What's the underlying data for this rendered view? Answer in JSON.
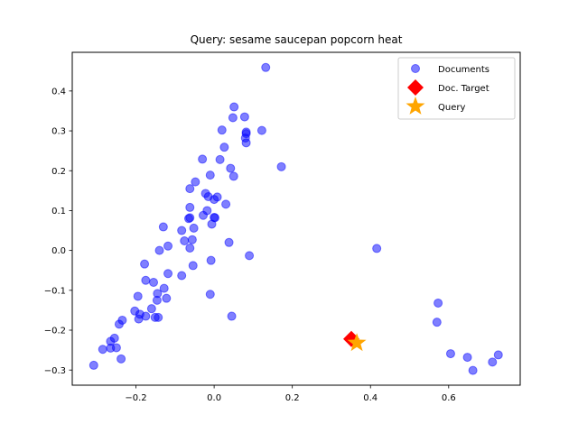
{
  "chart_data": {
    "type": "scatter",
    "title": "Query: sesame saucepan popcorn heat",
    "xlabel": "",
    "ylabel": "",
    "xlim": [
      -0.363,
      0.783
    ],
    "ylim": [
      -0.338,
      0.497
    ],
    "xticks": [
      -0.2,
      0.0,
      0.2,
      0.4,
      0.6
    ],
    "xtick_labels": [
      "−0.2",
      "0.0",
      "0.2",
      "0.4",
      "0.6"
    ],
    "yticks": [
      -0.3,
      -0.2,
      -0.1,
      0.0,
      0.1,
      0.2,
      0.3,
      0.4
    ],
    "ytick_labels": [
      "−0.3",
      "−0.2",
      "−0.1",
      "0.0",
      "0.1",
      "0.2",
      "0.3",
      "0.4"
    ],
    "grid": false,
    "legend_position": "top-right",
    "series": [
      {
        "name": "Documents",
        "marker": "circle",
        "color": "#0000ff",
        "points": [
          [
            0.132,
            0.459
          ],
          [
            0.051,
            0.36
          ],
          [
            0.048,
            0.333
          ],
          [
            0.078,
            0.335
          ],
          [
            0.02,
            0.302
          ],
          [
            0.122,
            0.301
          ],
          [
            0.082,
            0.297
          ],
          [
            0.082,
            0.293
          ],
          [
            0.08,
            0.282
          ],
          [
            0.082,
            0.27
          ],
          [
            0.026,
            0.259
          ],
          [
            -0.03,
            0.229
          ],
          [
            0.015,
            0.228
          ],
          [
            0.172,
            0.21
          ],
          [
            0.042,
            0.206
          ],
          [
            -0.01,
            0.189
          ],
          [
            0.05,
            0.186
          ],
          [
            -0.048,
            0.172
          ],
          [
            -0.062,
            0.155
          ],
          [
            -0.022,
            0.143
          ],
          [
            -0.015,
            0.135
          ],
          [
            0.008,
            0.134
          ],
          [
            0.0,
            0.128
          ],
          [
            0.03,
            0.116
          ],
          [
            -0.062,
            0.108
          ],
          [
            -0.018,
            0.1
          ],
          [
            -0.028,
            0.088
          ],
          [
            -0.062,
            0.082
          ],
          [
            -0.065,
            0.08
          ],
          [
            0.0,
            0.083
          ],
          [
            0.002,
            0.082
          ],
          [
            -0.006,
            0.066
          ],
          [
            -0.13,
            0.059
          ],
          [
            -0.052,
            0.056
          ],
          [
            -0.083,
            0.05
          ],
          [
            -0.056,
            0.027
          ],
          [
            -0.076,
            0.024
          ],
          [
            0.038,
            0.02
          ],
          [
            -0.118,
            0.011
          ],
          [
            -0.062,
            0.006
          ],
          [
            -0.14,
            0.0
          ],
          [
            0.416,
            0.005
          ],
          [
            0.09,
            -0.013
          ],
          [
            -0.008,
            -0.025
          ],
          [
            -0.178,
            -0.034
          ],
          [
            -0.054,
            -0.038
          ],
          [
            -0.118,
            -0.058
          ],
          [
            -0.083,
            -0.063
          ],
          [
            -0.175,
            -0.075
          ],
          [
            -0.155,
            -0.08
          ],
          [
            -0.128,
            -0.095
          ],
          [
            -0.01,
            -0.11
          ],
          [
            -0.145,
            -0.108
          ],
          [
            -0.195,
            -0.115
          ],
          [
            -0.122,
            -0.12
          ],
          [
            -0.146,
            -0.125
          ],
          [
            0.573,
            -0.132
          ],
          [
            -0.16,
            -0.146
          ],
          [
            -0.203,
            -0.152
          ],
          [
            -0.19,
            -0.16
          ],
          [
            -0.175,
            -0.165
          ],
          [
            0.045,
            -0.165
          ],
          [
            -0.151,
            -0.168
          ],
          [
            -0.143,
            -0.168
          ],
          [
            -0.193,
            -0.172
          ],
          [
            -0.235,
            -0.175
          ],
          [
            0.57,
            -0.18
          ],
          [
            -0.243,
            -0.185
          ],
          [
            -0.255,
            -0.22
          ],
          [
            -0.265,
            -0.228
          ],
          [
            -0.25,
            -0.244
          ],
          [
            -0.265,
            -0.245
          ],
          [
            -0.285,
            -0.248
          ],
          [
            0.605,
            -0.259
          ],
          [
            -0.238,
            -0.272
          ],
          [
            0.648,
            -0.268
          ],
          [
            0.727,
            -0.262
          ],
          [
            0.712,
            -0.28
          ],
          [
            -0.308,
            -0.288
          ],
          [
            0.662,
            -0.301
          ]
        ]
      },
      {
        "name": "Doc. Target",
        "marker": "diamond",
        "color": "#ff0000",
        "points": [
          [
            0.351,
            -0.222
          ]
        ]
      },
      {
        "name": "Query",
        "marker": "star",
        "color": "#ffa500",
        "points": [
          [
            0.365,
            -0.232
          ]
        ]
      }
    ]
  }
}
